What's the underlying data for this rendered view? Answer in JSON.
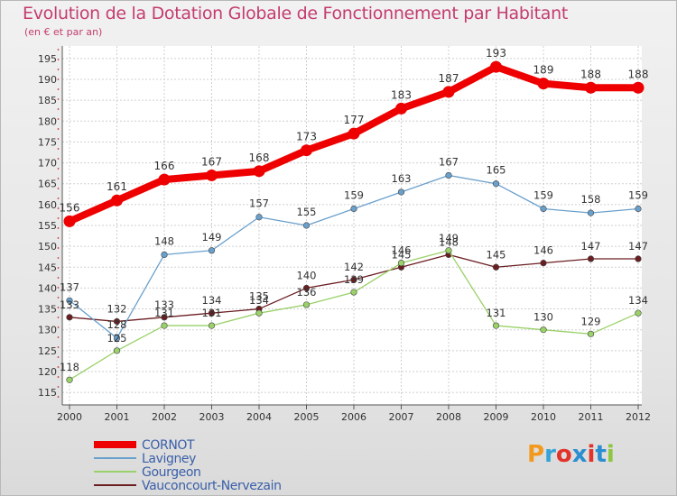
{
  "title": "Evolution de la Dotation Globale de Fonctionnement par Habitant",
  "subtitle": "(en € et par an)",
  "logo": {
    "text": "Proxiti",
    "colors": [
      "#f39a1e",
      "#35a3d6",
      "#e2322a",
      "#2b8ed0",
      "#e2322a",
      "#2b8ed0",
      "#8dc63f"
    ]
  },
  "chart_data": {
    "type": "line",
    "title": "Evolution de la Dotation Globale de Fonctionnement par Habitant",
    "subtitle": "(en € et par an)",
    "x": [
      "2000",
      "2001",
      "2002",
      "2003",
      "2004",
      "2005",
      "2006",
      "2007",
      "2008",
      "2009",
      "2010",
      "2011",
      "2012"
    ],
    "ylim": [
      112,
      198
    ],
    "yticks": [
      115,
      120,
      125,
      130,
      135,
      140,
      145,
      150,
      155,
      160,
      165,
      170,
      175,
      180,
      185,
      190,
      195
    ],
    "grid": true,
    "legend": "bottom-left",
    "series": [
      {
        "name": "Vauconcourt-Nervezain",
        "color": "#6b1e22",
        "values": [
          133,
          132,
          133,
          134,
          135,
          140,
          142,
          145,
          148,
          145,
          146,
          147,
          147
        ]
      },
      {
        "name": "Gourgeon",
        "color": "#9ad169",
        "values": [
          118,
          125,
          131,
          131,
          134,
          136,
          139,
          146,
          149,
          131,
          130,
          129,
          134
        ]
      },
      {
        "name": "Lavigney",
        "color": "#6aa0cc",
        "values": [
          137,
          128,
          148,
          149,
          157,
          155,
          159,
          163,
          167,
          165,
          159,
          158,
          159
        ]
      },
      {
        "name": "CORNOT",
        "color": "#ee0000",
        "values": [
          156,
          161,
          166,
          167,
          168,
          173,
          177,
          183,
          187,
          193,
          189,
          188,
          188
        ]
      }
    ],
    "legend_order": [
      "CORNOT",
      "Lavigney",
      "Gourgeon",
      "Vauconcourt-Nervezain"
    ]
  }
}
